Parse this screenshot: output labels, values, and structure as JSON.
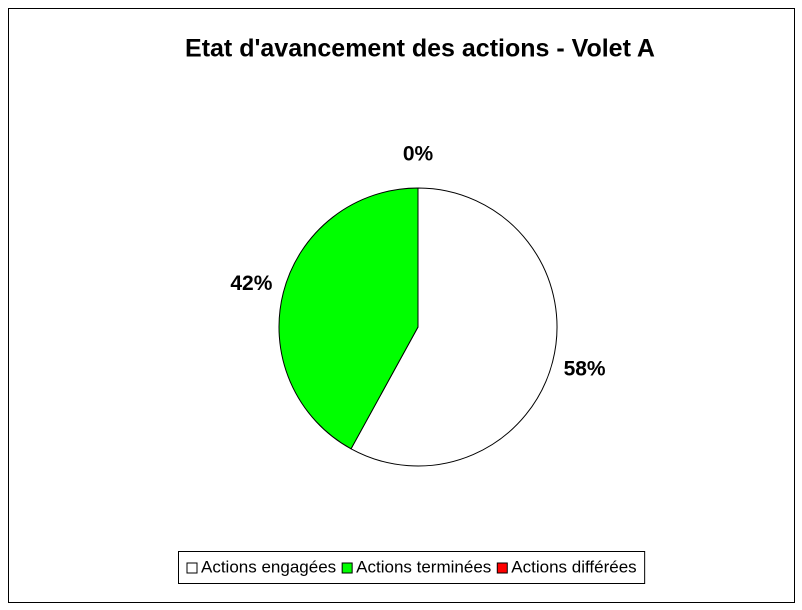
{
  "chart_data": {
    "type": "pie",
    "title": "Etat d'avancement des actions - Volet A",
    "categories": [
      "Actions engagées",
      "Actions terminées",
      "Actions différées"
    ],
    "values": [
      58,
      42,
      0
    ],
    "value_labels": [
      "58%",
      "42%",
      "0%"
    ],
    "colors": [
      "#ffffff",
      "#00ff00",
      "#ff0000"
    ],
    "legend": "bottom"
  }
}
